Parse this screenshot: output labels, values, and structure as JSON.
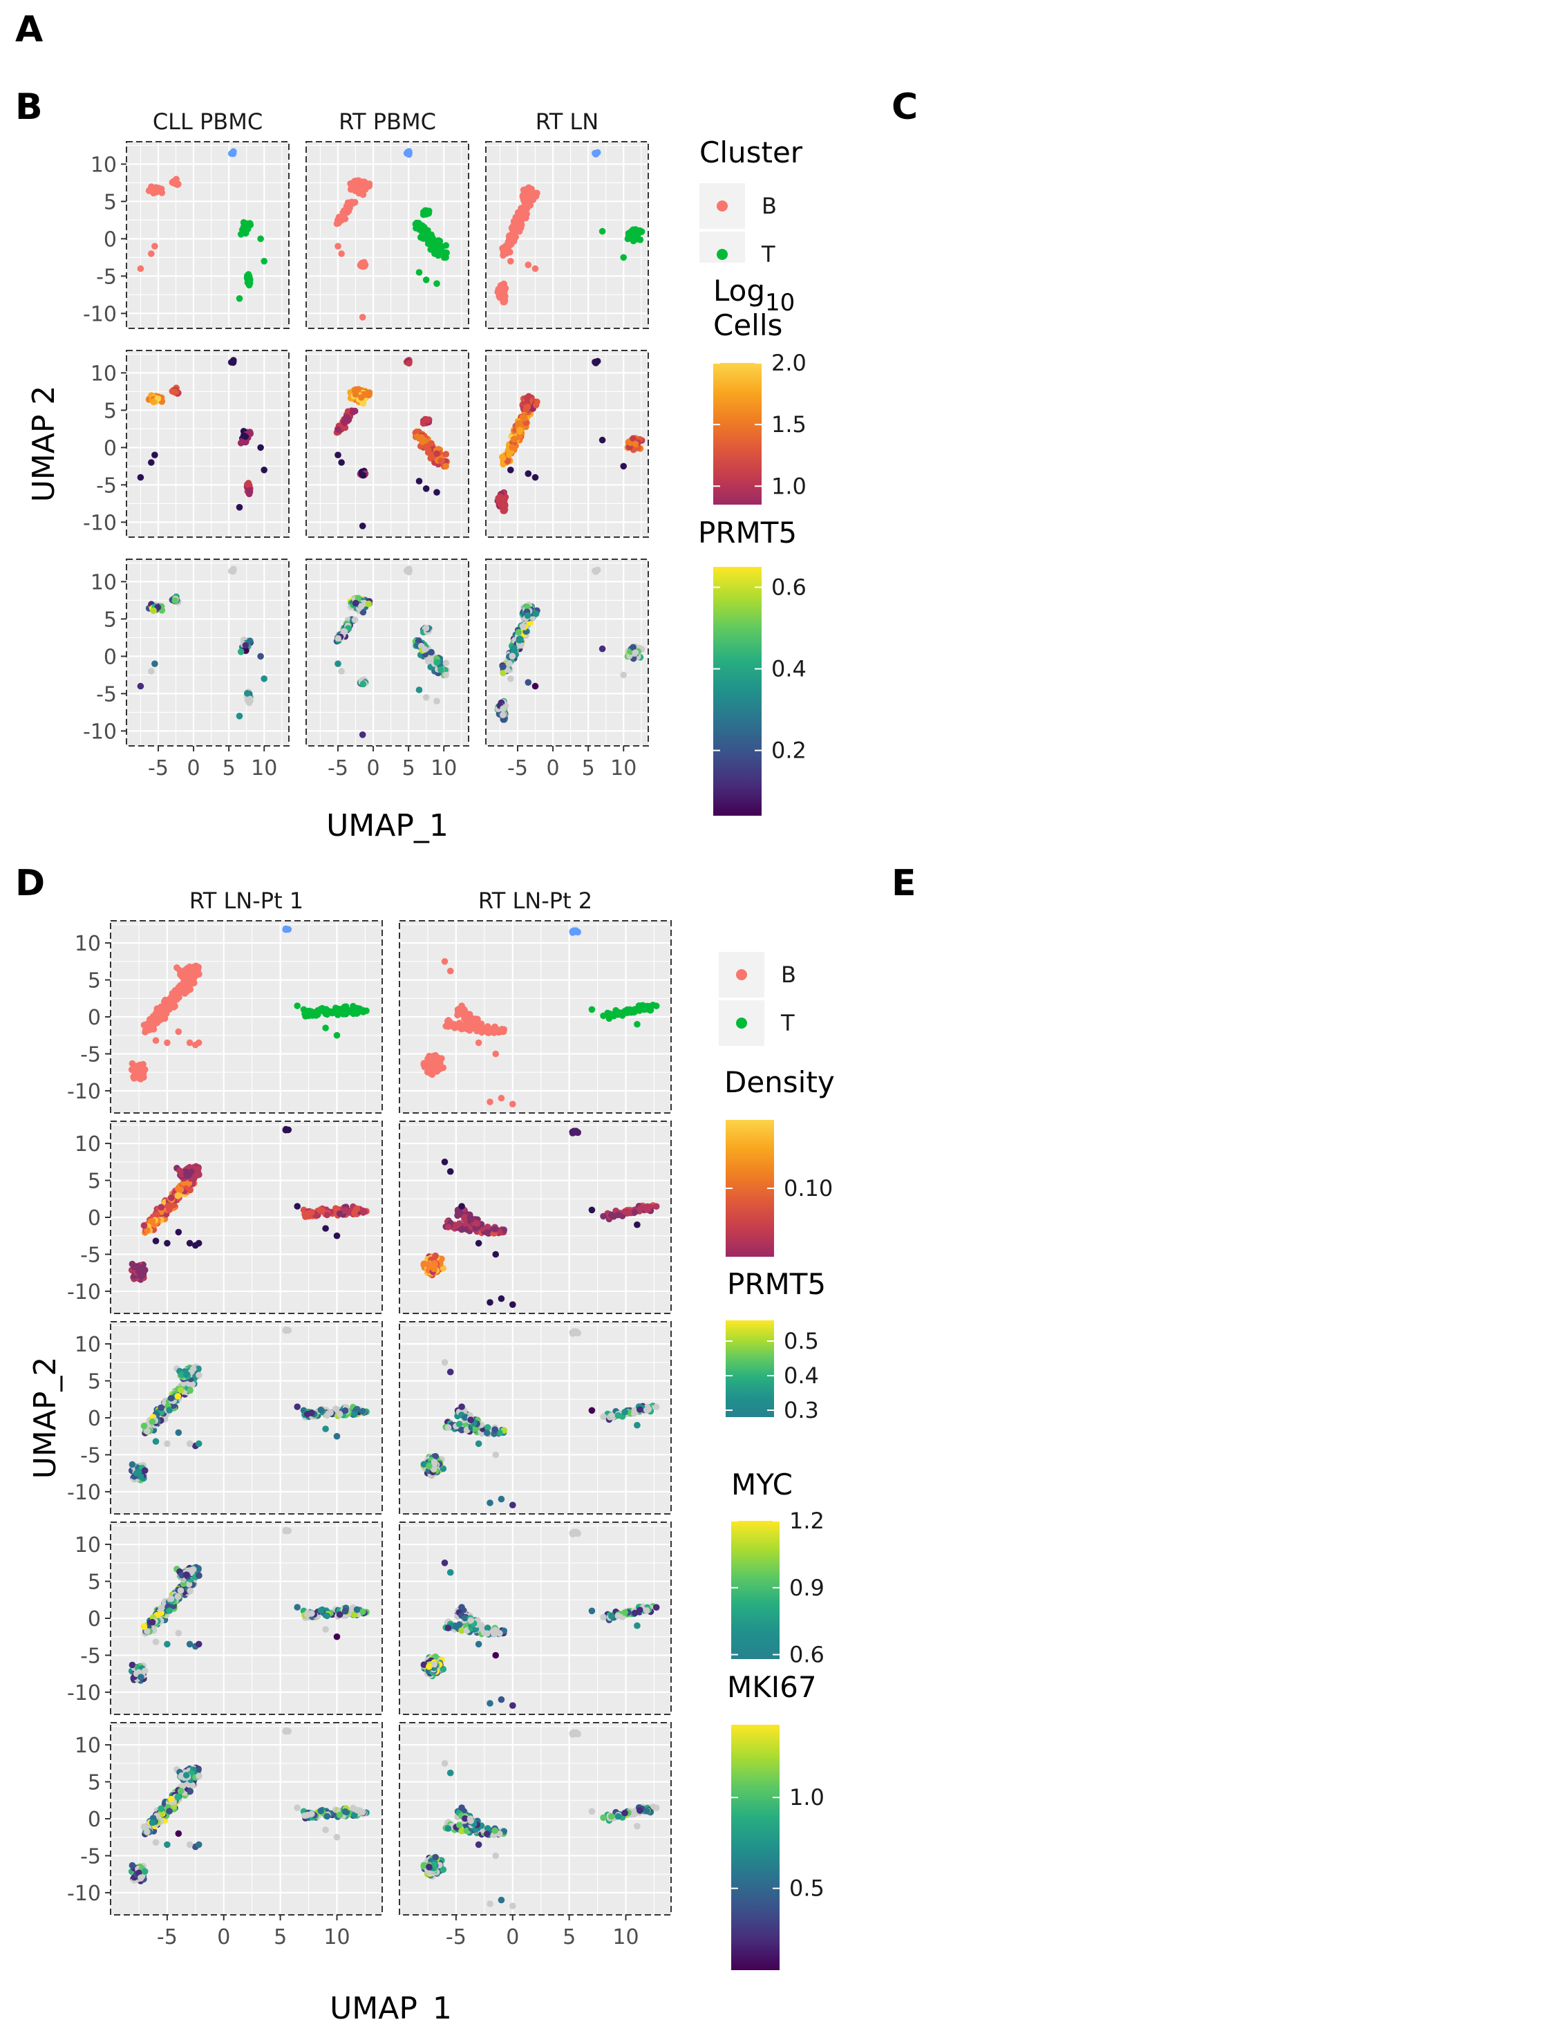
{
  "panel_letters": {
    "a": "A",
    "b": "B",
    "c": "C",
    "d": "D",
    "e": "E"
  },
  "chart_data": [
    {
      "id": "B",
      "type": "scatter",
      "facets": [
        "CLL PBMC",
        "RT PBMC",
        "RT LN"
      ],
      "rows": [
        "Cluster",
        "Log10 Cells",
        "PRMT5"
      ],
      "xlabel": "UMAP_1",
      "ylabel": "UMAP 2",
      "xticks": [
        -5,
        0,
        5,
        10
      ],
      "yticks": [
        10,
        5,
        0,
        -5,
        -10
      ],
      "xlim": [
        -9.5,
        13.5
      ],
      "ylim": [
        -12,
        13
      ],
      "legends": [
        {
          "title": "Cluster",
          "type": "discrete",
          "entries": [
            {
              "label": "B",
              "color": "#F8766D"
            },
            {
              "label": "T",
              "color": "#00BA38"
            }
          ]
        },
        {
          "title_main": "Log",
          "title_sub": "10",
          "title_line2": "Cells",
          "type": "continuous",
          "palette": "plasma",
          "range": [
            0.85,
            2.0
          ],
          "ticks": [
            2.0,
            1.5,
            1.0
          ],
          "tick_labels": [
            "2.0",
            "1.5",
            "1.0"
          ]
        },
        {
          "title": "PRMT5",
          "type": "continuous",
          "palette": "viridis",
          "range": [
            0.04,
            0.65
          ],
          "ticks": [
            0.6,
            0.4,
            0.2
          ],
          "tick_labels": [
            "0.6",
            "0.4",
            "0.2"
          ]
        }
      ]
    },
    {
      "id": "D",
      "type": "scatter",
      "facets": [
        "RT LN-Pt 1",
        "RT LN-Pt 2"
      ],
      "rows": [
        "Cluster",
        "Density",
        "PRMT5",
        "MYC",
        "MKI67"
      ],
      "xlabel": "UMAP_1",
      "ylabel": "UMAP_2",
      "xticks": [
        -5,
        0,
        5,
        10
      ],
      "yticks": [
        10,
        5,
        0,
        -5,
        -10
      ],
      "xlim": [
        -10,
        14
      ],
      "ylim": [
        -13,
        13
      ],
      "legends": [
        {
          "title": "",
          "type": "discrete",
          "entries": [
            {
              "label": "B",
              "color": "#F8766D"
            },
            {
              "label": "T",
              "color": "#00BA38"
            }
          ]
        },
        {
          "title": "Density",
          "type": "continuous",
          "palette": "plasma",
          "range": [
            0.06,
            0.14
          ],
          "ticks": [
            0.1
          ],
          "tick_labels": [
            "0.10"
          ]
        },
        {
          "title": "PRMT5",
          "type": "continuous",
          "palette": "viridis_upper",
          "range": [
            0.28,
            0.56
          ],
          "ticks": [
            0.5,
            0.4,
            0.3
          ],
          "tick_labels": [
            "0.5",
            "0.4",
            "0.3"
          ]
        },
        {
          "title": "MYC",
          "type": "continuous",
          "palette": "viridis_upper",
          "range": [
            0.58,
            1.2
          ],
          "ticks": [
            1.2,
            0.9,
            0.6
          ],
          "tick_labels": [
            "1.2",
            "0.9",
            "0.6"
          ]
        },
        {
          "title": "MKI67",
          "type": "continuous",
          "palette": "viridis",
          "range": [
            0.05,
            1.4
          ],
          "ticks": [
            1.0,
            0.5
          ],
          "tick_labels": [
            "1.0",
            "0.5"
          ]
        }
      ]
    }
  ]
}
